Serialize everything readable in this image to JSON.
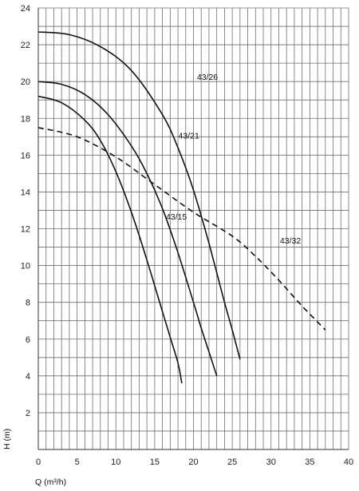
{
  "chart_data": {
    "type": "line",
    "title": "",
    "xlabel": "Q (m³/h)",
    "ylabel": "H (m)",
    "xlim": [
      0,
      40
    ],
    "ylim": [
      0,
      24
    ],
    "grid": true,
    "legend": "none",
    "x_ticks": [
      0,
      5,
      10,
      15,
      20,
      25,
      30,
      35,
      40
    ],
    "y_ticks": [
      2,
      4,
      6,
      8,
      10,
      12,
      14,
      16,
      18,
      20,
      22,
      24
    ],
    "x_tick_labels": [
      "0",
      "5",
      "10",
      "15",
      "20",
      "25",
      "30",
      "35",
      "40"
    ],
    "y_tick_labels": [
      "2",
      "4",
      "6",
      "8",
      "10",
      "12",
      "14",
      "16",
      "18",
      "20",
      "22",
      "24"
    ],
    "series": [
      {
        "name": "43/26",
        "style": "solid",
        "points": [
          [
            0,
            22.7
          ],
          [
            4,
            22.55
          ],
          [
            8,
            21.9
          ],
          [
            12,
            20.6
          ],
          [
            16,
            18.2
          ],
          [
            18,
            16.4
          ],
          [
            20,
            14.1
          ],
          [
            22,
            11.2
          ],
          [
            24,
            8.0
          ],
          [
            25,
            6.5
          ],
          [
            26,
            4.9
          ]
        ]
      },
      {
        "name": "43/21",
        "style": "solid",
        "points": [
          [
            0,
            20.0
          ],
          [
            3,
            19.85
          ],
          [
            6,
            19.3
          ],
          [
            9,
            18.2
          ],
          [
            12,
            16.5
          ],
          [
            14,
            15.0
          ],
          [
            16,
            13.1
          ],
          [
            18,
            10.7
          ],
          [
            20,
            8.0
          ],
          [
            21,
            6.6
          ],
          [
            22,
            5.3
          ],
          [
            23,
            4.0
          ]
        ]
      },
      {
        "name": "43/15",
        "style": "solid",
        "points": [
          [
            0,
            19.2
          ],
          [
            3,
            18.85
          ],
          [
            6,
            17.9
          ],
          [
            8,
            16.8
          ],
          [
            10,
            15.1
          ],
          [
            12,
            12.9
          ],
          [
            14,
            10.3
          ],
          [
            16,
            7.5
          ],
          [
            17,
            6.1
          ],
          [
            18,
            4.7
          ],
          [
            18.5,
            3.6
          ]
        ]
      },
      {
        "name": "43/32",
        "style": "dashed",
        "points": [
          [
            0,
            17.5
          ],
          [
            5,
            17.0
          ],
          [
            10,
            15.9
          ],
          [
            15,
            14.4
          ],
          [
            20,
            12.9
          ],
          [
            25,
            11.6
          ],
          [
            28,
            10.5
          ],
          [
            31,
            9.2
          ],
          [
            34,
            7.8
          ],
          [
            37,
            6.5
          ]
        ]
      }
    ],
    "annotations": [
      {
        "text": "43/26",
        "x": 21.8,
        "y": 20.1
      },
      {
        "text": "43/21",
        "x": 19.4,
        "y": 16.9
      },
      {
        "text": "43/15",
        "x": 17.8,
        "y": 12.5
      },
      {
        "text": "43/32",
        "x": 32.5,
        "y": 11.2
      }
    ]
  }
}
